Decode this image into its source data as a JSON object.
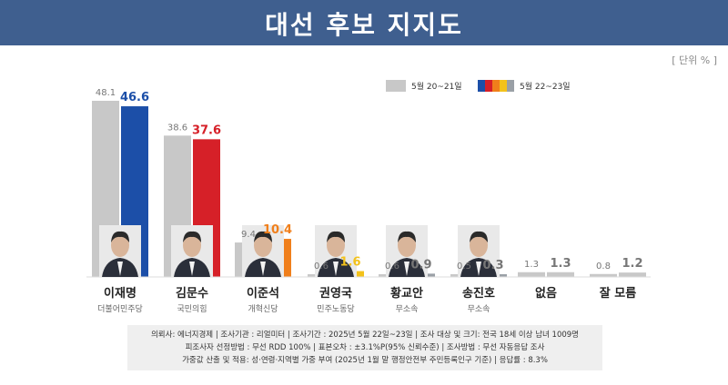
{
  "header": {
    "title": "대선 후보 지지도"
  },
  "unit_label": "[ 단위 % ]",
  "legend": {
    "prev_label": "5월 20~21일",
    "curr_label": "5월 22~23일",
    "prev_color": "#c8c8c8",
    "curr_swatch_colors": [
      "#1c4fa8",
      "#d62028",
      "#f07f1b",
      "#f3c21b",
      "#9aa0a6"
    ]
  },
  "chart_data": {
    "type": "bar",
    "categories": [
      "이재명",
      "김문수",
      "이준석",
      "권영국",
      "황교안",
      "송진호",
      "없음",
      "잘 모름"
    ],
    "parties": [
      "더불어민주당",
      "국민의힘",
      "개혁신당",
      "민주노동당",
      "무소속",
      "무소속",
      "",
      ""
    ],
    "series": [
      {
        "name": "5월 20~21일",
        "values": [
          48.1,
          38.6,
          9.4,
          0.6,
          0.6,
          0.5,
          1.3,
          0.8
        ]
      },
      {
        "name": "5월 22~23일",
        "values": [
          46.6,
          37.6,
          10.4,
          1.6,
          0.9,
          0.3,
          1.3,
          1.2
        ]
      }
    ],
    "prev_value_labels": [
      "48.1",
      "38.6",
      "9.4",
      "0.6",
      "0.6",
      "0.5",
      "1.3",
      "0.8"
    ],
    "curr_value_labels": [
      "46.6",
      "37.6",
      "10.4",
      "1.6",
      "0.9",
      "0.3",
      "1.3",
      "1.2"
    ],
    "prev_color": "#c8c8c8",
    "curr_colors": [
      "#1c4fa8",
      "#d62028",
      "#f07f1b",
      "#f3c21b",
      "#9aa0a6",
      "#9aa0a6",
      "#c8c8c8",
      "#c8c8c8"
    ],
    "label_colors": [
      "#1c4fa8",
      "#d62028",
      "#f07f1b",
      "#f3c21b",
      "#777777",
      "#777777",
      "#777777",
      "#777777"
    ],
    "ylim": [
      0,
      50
    ],
    "grid": false
  },
  "footer": {
    "line1": "의뢰사: 에너지경제 | 조사기관 : 리얼미터 | 조사기간 : 2025년 5월 22일~23일 | 조사 대상 및 크기: 전국 18세 이상 남녀 1009명",
    "line2": "피조사자 선정방법 : 무선 RDD 100% | 표본오차 : ±3.1%P(95% 신뢰수준) | 조사방법 : 무선 자동응답 조사",
    "line3": "가중값 산출 및 적용: 성·연령·지역별 가중 부여 (2025년 1월 말 행정안전부 주민등록인구 기준) | 응답률 : 8.3%"
  }
}
